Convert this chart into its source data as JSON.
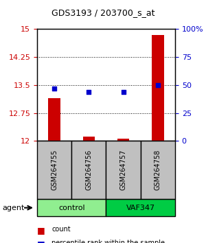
{
  "title": "GDS3193 / 203700_s_at",
  "samples": [
    "GSM264755",
    "GSM264756",
    "GSM264757",
    "GSM264758"
  ],
  "groups": [
    "control",
    "control",
    "VAF347",
    "VAF347"
  ],
  "group_colors": [
    "#90EE90",
    "#90EE90",
    "#00CC00",
    "#00CC00"
  ],
  "counts": [
    13.15,
    12.12,
    12.07,
    14.85
  ],
  "percentiles": [
    47,
    44,
    44,
    50
  ],
  "ylim_left": [
    12,
    15
  ],
  "yticks_left": [
    12,
    12.75,
    13.5,
    14.25,
    15
  ],
  "ylim_right": [
    0,
    100
  ],
  "yticks_right": [
    0,
    25,
    50,
    75,
    100
  ],
  "bar_color": "#CC0000",
  "dot_color": "#0000CC",
  "bar_width": 0.35,
  "background_color": "#ffffff",
  "grid_color": "#000000",
  "sample_box_color": "#C0C0C0",
  "legend_count_label": "count",
  "legend_pct_label": "percentile rank within the sample",
  "agent_label": "agent",
  "group_label_control": "control",
  "group_label_vaf": "VAF347"
}
